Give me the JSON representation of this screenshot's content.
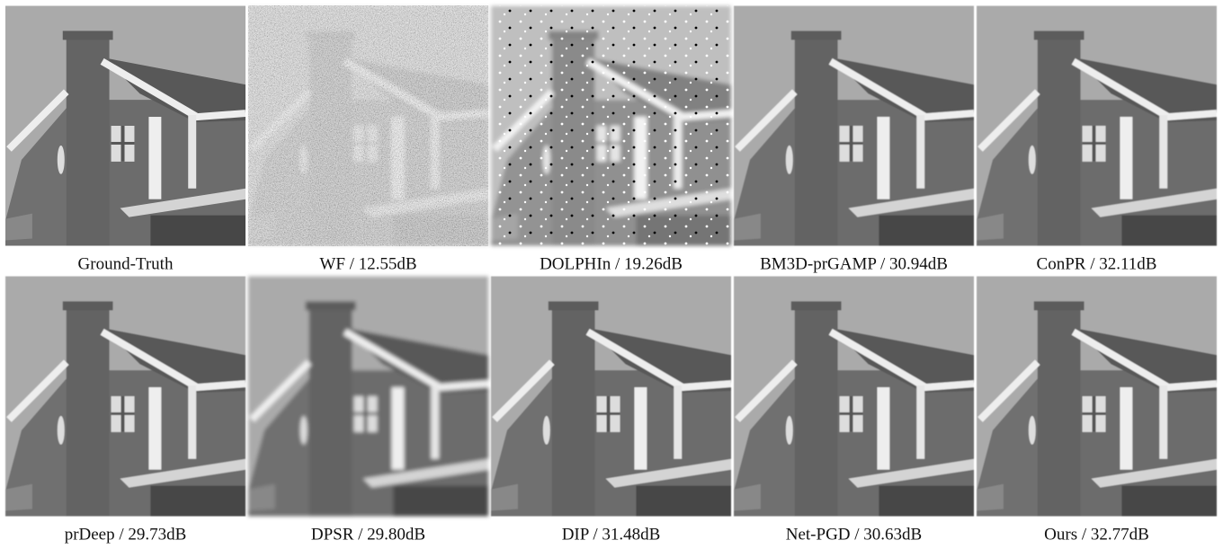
{
  "figure": {
    "captions": [
      "Ground-Truth",
      "WF / 12.55dB",
      "DOLPHIn / 19.26dB",
      "BM3D-prGAMP / 30.94dB",
      "ConPR / 32.11dB",
      "prDeep / 29.73dB",
      "DPSR / 29.80dB",
      "DIP / 31.48dB",
      "Net-PGD / 30.63dB",
      "Ours / 32.77dB"
    ]
  }
}
